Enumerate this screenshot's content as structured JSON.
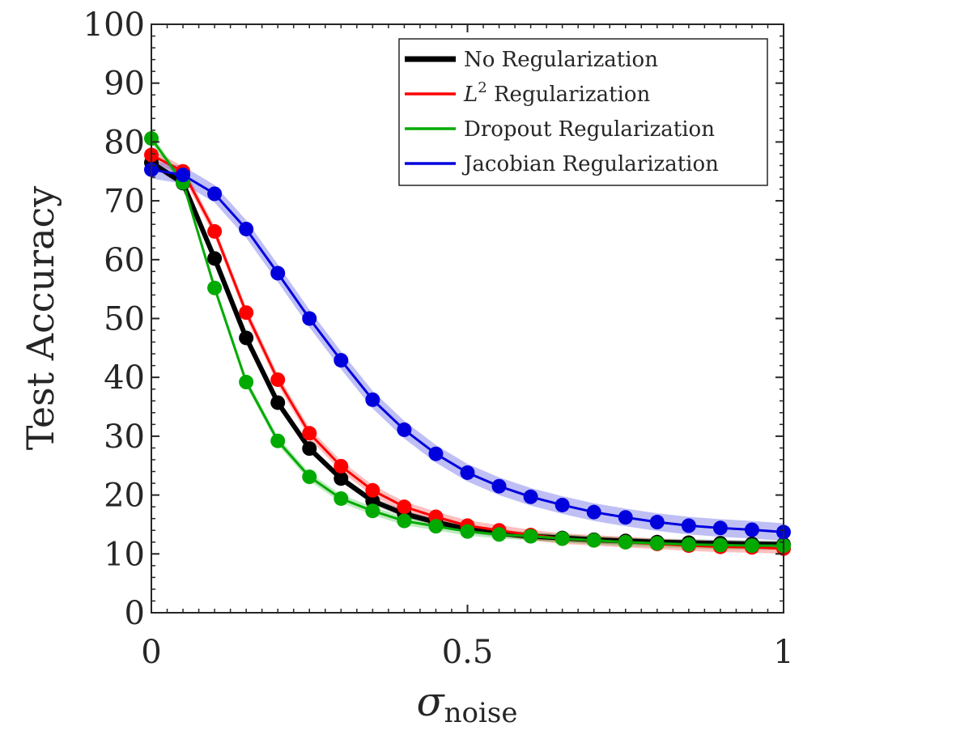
{
  "chart_data": {
    "type": "line",
    "title": "",
    "xlabel": "σ",
    "xlabel_subscript": "noise",
    "ylabel": "Test Accuracy",
    "xlim": [
      0,
      1
    ],
    "ylim": [
      0,
      100
    ],
    "xticks": [
      0,
      0.5,
      1
    ],
    "xtick_labels": [
      "0",
      "0.5",
      "1"
    ],
    "yticks": [
      0,
      10,
      20,
      30,
      40,
      50,
      60,
      70,
      80,
      90,
      100
    ],
    "ytick_labels": [
      "0",
      "10",
      "20",
      "30",
      "40",
      "50",
      "60",
      "70",
      "80",
      "90",
      "100"
    ],
    "grid": false,
    "legend_position": "top-right",
    "x": [
      0,
      0.05,
      0.1,
      0.15,
      0.2,
      0.25,
      0.3,
      0.35,
      0.4,
      0.45,
      0.5,
      0.55,
      0.6,
      0.65,
      0.7,
      0.75,
      0.8,
      0.85,
      0.9,
      0.95,
      1.0
    ],
    "series": [
      {
        "name": "No Regularization",
        "legend_main": "No Regularization",
        "legend_sup": "",
        "legend_rest": "",
        "color": "#000000",
        "values": [
          76.5,
          73.0,
          60.2,
          46.7,
          35.7,
          27.9,
          22.8,
          19.0,
          16.8,
          15.4,
          14.2,
          13.5,
          13.0,
          12.7,
          12.4,
          12.2,
          12.0,
          11.9,
          11.8,
          11.7,
          11.6
        ],
        "band": 0.6
      },
      {
        "name": "L2 Regularization",
        "legend_main": "L",
        "legend_sup": "2",
        "legend_rest": " Regularization",
        "color": "#ff0000",
        "values": [
          77.8,
          75.0,
          64.8,
          51.0,
          39.6,
          30.5,
          24.9,
          20.8,
          18.0,
          16.3,
          14.8,
          14.0,
          13.2,
          12.6,
          12.3,
          12.0,
          11.7,
          11.4,
          11.2,
          11.1,
          10.9
        ],
        "band": 0.9
      },
      {
        "name": "Dropout Regularization",
        "legend_main": "Dropout Regularization",
        "legend_sup": "",
        "legend_rest": "",
        "color": "#00aa00",
        "values": [
          80.6,
          73.1,
          55.2,
          39.2,
          29.2,
          23.1,
          19.4,
          17.3,
          15.6,
          14.7,
          13.8,
          13.3,
          13.0,
          12.6,
          12.3,
          12.0,
          11.8,
          11.6,
          11.5,
          11.4,
          11.4
        ],
        "band": 0.7
      },
      {
        "name": "Jacobian Regularization",
        "legend_main": "Jacobian Regularization",
        "legend_sup": "",
        "legend_rest": "",
        "color": "#0000dd",
        "values": [
          75.3,
          74.4,
          71.2,
          65.2,
          57.7,
          50.0,
          42.9,
          36.2,
          31.1,
          27.0,
          23.8,
          21.5,
          19.7,
          18.3,
          17.1,
          16.2,
          15.4,
          14.8,
          14.4,
          14.1,
          13.7
        ],
        "band": 1.5
      }
    ]
  }
}
